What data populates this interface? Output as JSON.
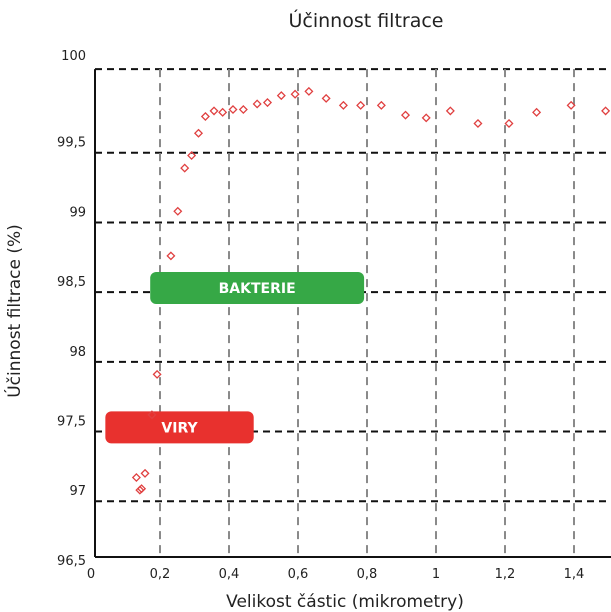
{
  "chart_data": {
    "type": "scatter",
    "title": "Účinnost filtrace",
    "xlabel": "Velikost částic (mikrometry)",
    "ylabel": "Účinnost filtrace (%)",
    "xlim": [
      0,
      1.5
    ],
    "ylim": [
      96.5,
      100
    ],
    "x_ticks": [
      0,
      0.2,
      0.4,
      0.6,
      0.8,
      1,
      1.2,
      1.4
    ],
    "x_tick_labels": [
      "0",
      "0,2",
      "0,4",
      "0,6",
      "0,8",
      "1",
      "1,2",
      "1,4"
    ],
    "y_ticks": [
      96.5,
      97,
      97.5,
      98,
      98.5,
      99,
      99.5,
      100
    ],
    "y_tick_labels": [
      "96,5",
      "97",
      "97,5",
      "98",
      "98,5",
      "99",
      "99,5",
      "100"
    ],
    "grid": true,
    "marker_color": "#e04040",
    "series": [
      {
        "x": [
          0.12,
          0.13,
          0.135,
          0.145,
          0.165,
          0.18,
          0.22,
          0.24,
          0.26,
          0.28,
          0.3,
          0.32,
          0.345,
          0.37,
          0.4,
          0.43,
          0.47,
          0.5,
          0.54,
          0.58,
          0.62,
          0.67,
          0.72,
          0.77,
          0.83,
          0.9,
          0.96,
          1.03,
          1.11,
          1.2,
          1.28,
          1.38,
          1.48
        ],
        "y": [
          97.07,
          96.98,
          96.99,
          97.1,
          97.52,
          97.81,
          98.66,
          98.98,
          99.29,
          99.38,
          99.54,
          99.66,
          99.7,
          99.69,
          99.71,
          99.71,
          99.75,
          99.76,
          99.81,
          99.82,
          99.84,
          99.79,
          99.74,
          99.74,
          99.74,
          99.67,
          99.65,
          99.7,
          99.61,
          99.61,
          99.69,
          99.74,
          99.7
        ]
      }
    ],
    "annotations": [
      {
        "text": "BAKTERIE",
        "x_start": 0.16,
        "x_end": 0.78,
        "y": 98.43,
        "color": "#36a846"
      },
      {
        "text": "VIRY",
        "x_start": 0.03,
        "x_end": 0.46,
        "y": 97.43,
        "color": "#e8312e"
      }
    ]
  }
}
